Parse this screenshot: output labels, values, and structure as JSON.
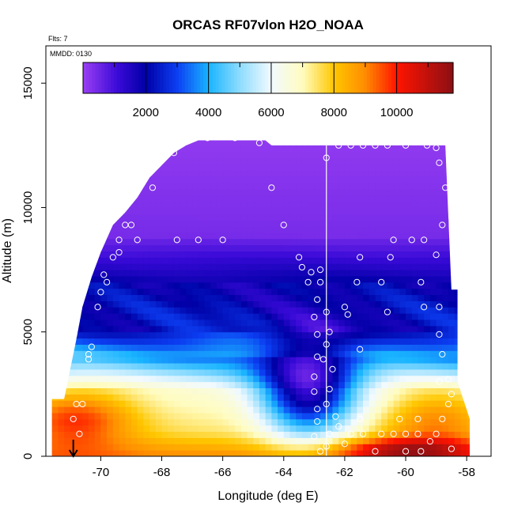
{
  "chart_data": {
    "type": "heatmap",
    "title": "ORCAS RF07vlon H2O_NOAA",
    "note_flights": "Flts: 7",
    "note_date": "MMDD: 0130",
    "xlabel": "Longitude (deg E)",
    "ylabel": "Altitude (m)",
    "xlim": [
      -71.8,
      -57.2
    ],
    "ylim": [
      0,
      16500
    ],
    "x_ticks": [
      -70,
      -68,
      -66,
      -64,
      -62,
      -60,
      -58
    ],
    "x_tick_labels": [
      "-70",
      "-68",
      "-66",
      "-64",
      "-62",
      "-60",
      "-58"
    ],
    "y_ticks": [
      0,
      5000,
      10000,
      15000
    ],
    "y_tick_labels": [
      "0",
      "5000",
      "10000",
      "15000"
    ],
    "colorbar": {
      "min": 0,
      "max": 11800,
      "ticks": [
        2000,
        4000,
        6000,
        8000,
        10000
      ],
      "tick_labels": [
        "2000",
        "4000",
        "6000",
        "8000",
        "10000"
      ],
      "stops": [
        {
          "v": 0,
          "c": "#9a3ff2"
        },
        {
          "v": 1100,
          "c": "#3a0ad8"
        },
        {
          "v": 2000,
          "c": "#0000a6"
        },
        {
          "v": 3000,
          "c": "#0c3ef2"
        },
        {
          "v": 4000,
          "c": "#19b4ff"
        },
        {
          "v": 5000,
          "c": "#8edcff"
        },
        {
          "v": 6000,
          "c": "#f2faff"
        },
        {
          "v": 7000,
          "c": "#fffcc0"
        },
        {
          "v": 8000,
          "c": "#ffc700"
        },
        {
          "v": 9000,
          "c": "#ff8c00"
        },
        {
          "v": 10000,
          "c": "#ff1400"
        },
        {
          "v": 11800,
          "c": "#8c0f14"
        }
      ]
    },
    "vertical_marker_lon": -62.6,
    "arrow_lon": -70.9,
    "coverage": [
      {
        "lon": -71.6,
        "top": 2300
      },
      {
        "lon": -71.2,
        "top": 2300
      },
      {
        "lon": -70.8,
        "top": 4700
      },
      {
        "lon": -70.6,
        "top": 6000
      },
      {
        "lon": -70.3,
        "top": 7200
      },
      {
        "lon": -70.0,
        "top": 8200
      },
      {
        "lon": -69.6,
        "top": 9300
      },
      {
        "lon": -69.2,
        "top": 9800
      },
      {
        "lon": -68.8,
        "top": 10400
      },
      {
        "lon": -68.4,
        "top": 11200
      },
      {
        "lon": -68.0,
        "top": 11700
      },
      {
        "lon": -67.6,
        "top": 12200
      },
      {
        "lon": -67.2,
        "top": 12500
      },
      {
        "lon": -66.8,
        "top": 12700
      },
      {
        "lon": -64.6,
        "top": 12700
      },
      {
        "lon": -64.4,
        "top": 12500
      },
      {
        "lon": -58.7,
        "top": 12500
      },
      {
        "lon": -58.5,
        "top": 6700
      },
      {
        "lon": -58.3,
        "top": 6700
      },
      {
        "lon": -58.3,
        "top": 3000
      },
      {
        "lon": -57.9,
        "top": 1500
      }
    ],
    "coverage_right_lon": -57.9,
    "data_points": [
      {
        "lon": -70.8,
        "alt": 2100
      },
      {
        "lon": -70.6,
        "alt": 2100
      },
      {
        "lon": -70.9,
        "alt": 1500
      },
      {
        "lon": -70.7,
        "alt": 900
      },
      {
        "lon": -70.4,
        "alt": 3900
      },
      {
        "lon": -70.3,
        "alt": 4400
      },
      {
        "lon": -70.4,
        "alt": 4100
      },
      {
        "lon": -70.1,
        "alt": 6000
      },
      {
        "lon": -70.0,
        "alt": 6600
      },
      {
        "lon": -69.9,
        "alt": 7300
      },
      {
        "lon": -69.8,
        "alt": 7000
      },
      {
        "lon": -69.6,
        "alt": 8000
      },
      {
        "lon": -69.4,
        "alt": 8200
      },
      {
        "lon": -69.4,
        "alt": 8700
      },
      {
        "lon": -69.2,
        "alt": 9300
      },
      {
        "lon": -69.0,
        "alt": 9300
      },
      {
        "lon": -68.8,
        "alt": 8700
      },
      {
        "lon": -68.3,
        "alt": 10800
      },
      {
        "lon": -67.6,
        "alt": 12200
      },
      {
        "lon": -67.5,
        "alt": 8700
      },
      {
        "lon": -66.8,
        "alt": 8700
      },
      {
        "lon": -66.5,
        "alt": 12800
      },
      {
        "lon": -66.0,
        "alt": 8700
      },
      {
        "lon": -65.6,
        "alt": 12800
      },
      {
        "lon": -64.8,
        "alt": 12600
      },
      {
        "lon": -64.4,
        "alt": 10800
      },
      {
        "lon": -64.0,
        "alt": 9300
      },
      {
        "lon": -63.5,
        "alt": 8000
      },
      {
        "lon": -63.4,
        "alt": 7600
      },
      {
        "lon": -63.2,
        "alt": 7000
      },
      {
        "lon": -63.1,
        "alt": 7400
      },
      {
        "lon": -62.9,
        "alt": 6300
      },
      {
        "lon": -62.8,
        "alt": 7500
      },
      {
        "lon": -62.8,
        "alt": 7000
      },
      {
        "lon": -62.6,
        "alt": 5800
      },
      {
        "lon": -62.5,
        "alt": 5000
      },
      {
        "lon": -62.6,
        "alt": 4500
      },
      {
        "lon": -62.7,
        "alt": 3900
      },
      {
        "lon": -62.4,
        "alt": 3500
      },
      {
        "lon": -62.5,
        "alt": 2700
      },
      {
        "lon": -62.6,
        "alt": 2100
      },
      {
        "lon": -62.3,
        "alt": 1600
      },
      {
        "lon": -62.2,
        "alt": 1200
      },
      {
        "lon": -62.5,
        "alt": 900
      },
      {
        "lon": -62.6,
        "alt": 12000
      },
      {
        "lon": -62.2,
        "alt": 12500
      },
      {
        "lon": -61.8,
        "alt": 12500
      },
      {
        "lon": -61.4,
        "alt": 12500
      },
      {
        "lon": -61.0,
        "alt": 12500
      },
      {
        "lon": -60.6,
        "alt": 12500
      },
      {
        "lon": -60.0,
        "alt": 12500
      },
      {
        "lon": -59.3,
        "alt": 12500
      },
      {
        "lon": -59.0,
        "alt": 12400
      },
      {
        "lon": -58.9,
        "alt": 11800
      },
      {
        "lon": -58.7,
        "alt": 10800
      },
      {
        "lon": -58.8,
        "alt": 9300
      },
      {
        "lon": -59.0,
        "alt": 8100
      },
      {
        "lon": -59.4,
        "alt": 8700
      },
      {
        "lon": -59.8,
        "alt": 8700
      },
      {
        "lon": -60.4,
        "alt": 8700
      },
      {
        "lon": -60.5,
        "alt": 8000
      },
      {
        "lon": -60.8,
        "alt": 7000
      },
      {
        "lon": -61.5,
        "alt": 8000
      },
      {
        "lon": -61.6,
        "alt": 7000
      },
      {
        "lon": -61.9,
        "alt": 5700
      },
      {
        "lon": -62.0,
        "alt": 6000
      },
      {
        "lon": -61.5,
        "alt": 4300
      },
      {
        "lon": -60.6,
        "alt": 5800
      },
      {
        "lon": -59.5,
        "alt": 7000
      },
      {
        "lon": -59.4,
        "alt": 6000
      },
      {
        "lon": -58.9,
        "alt": 6000
      },
      {
        "lon": -58.9,
        "alt": 4900
      },
      {
        "lon": -58.8,
        "alt": 4100
      },
      {
        "lon": -58.9,
        "alt": 3000
      },
      {
        "lon": -58.6,
        "alt": 3100
      },
      {
        "lon": -58.5,
        "alt": 2500
      },
      {
        "lon": -58.6,
        "alt": 2100
      },
      {
        "lon": -58.8,
        "alt": 1500
      },
      {
        "lon": -59.0,
        "alt": 900
      },
      {
        "lon": -59.2,
        "alt": 600
      },
      {
        "lon": -59.6,
        "alt": 900
      },
      {
        "lon": -60.0,
        "alt": 900
      },
      {
        "lon": -60.4,
        "alt": 900
      },
      {
        "lon": -60.8,
        "alt": 900
      },
      {
        "lon": -61.4,
        "alt": 900
      },
      {
        "lon": -61.8,
        "alt": 900
      },
      {
        "lon": -62.0,
        "alt": 500
      },
      {
        "lon": -62.6,
        "alt": 400
      },
      {
        "lon": -62.8,
        "alt": 200
      },
      {
        "lon": -63.0,
        "alt": 800
      },
      {
        "lon": -62.9,
        "alt": 1400
      },
      {
        "lon": -62.9,
        "alt": 1900
      },
      {
        "lon": -63.0,
        "alt": 2600
      },
      {
        "lon": -63.0,
        "alt": 3200
      },
      {
        "lon": -62.9,
        "alt": 4000
      },
      {
        "lon": -62.9,
        "alt": 4900
      },
      {
        "lon": -63.0,
        "alt": 5600
      },
      {
        "lon": -61.0,
        "alt": 200
      },
      {
        "lon": -60.0,
        "alt": 200
      },
      {
        "lon": -59.5,
        "alt": 200
      },
      {
        "lon": -58.5,
        "alt": 300
      },
      {
        "lon": -61.5,
        "alt": 1500
      },
      {
        "lon": -60.2,
        "alt": 1500
      },
      {
        "lon": -59.6,
        "alt": 1500
      }
    ]
  }
}
